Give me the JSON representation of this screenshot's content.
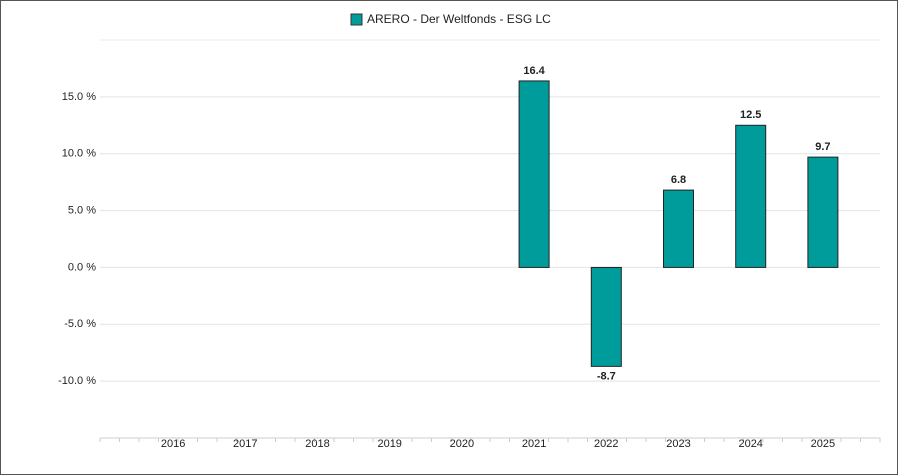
{
  "chart_data": {
    "type": "bar",
    "legend": "ARERO - Der Weltfonds - ESG LC",
    "categories": [
      "2016",
      "2017",
      "2018",
      "2019",
      "2020",
      "2021",
      "2022",
      "2023",
      "2024",
      "2025"
    ],
    "values": [
      null,
      null,
      null,
      null,
      null,
      16.4,
      -8.7,
      6.8,
      12.5,
      9.7
    ],
    "color": "#009c9c",
    "ylim": [
      -15,
      20
    ],
    "yticks": [
      {
        "value": -10,
        "label": "-10.0 %"
      },
      {
        "value": -5,
        "label": "-5.0 %"
      },
      {
        "value": 0,
        "label": "0.0 %"
      },
      {
        "value": 5,
        "label": "5.0 %"
      },
      {
        "value": 10,
        "label": "10.0 %"
      },
      {
        "value": 15,
        "label": "15.0 %"
      }
    ],
    "grid": true
  }
}
